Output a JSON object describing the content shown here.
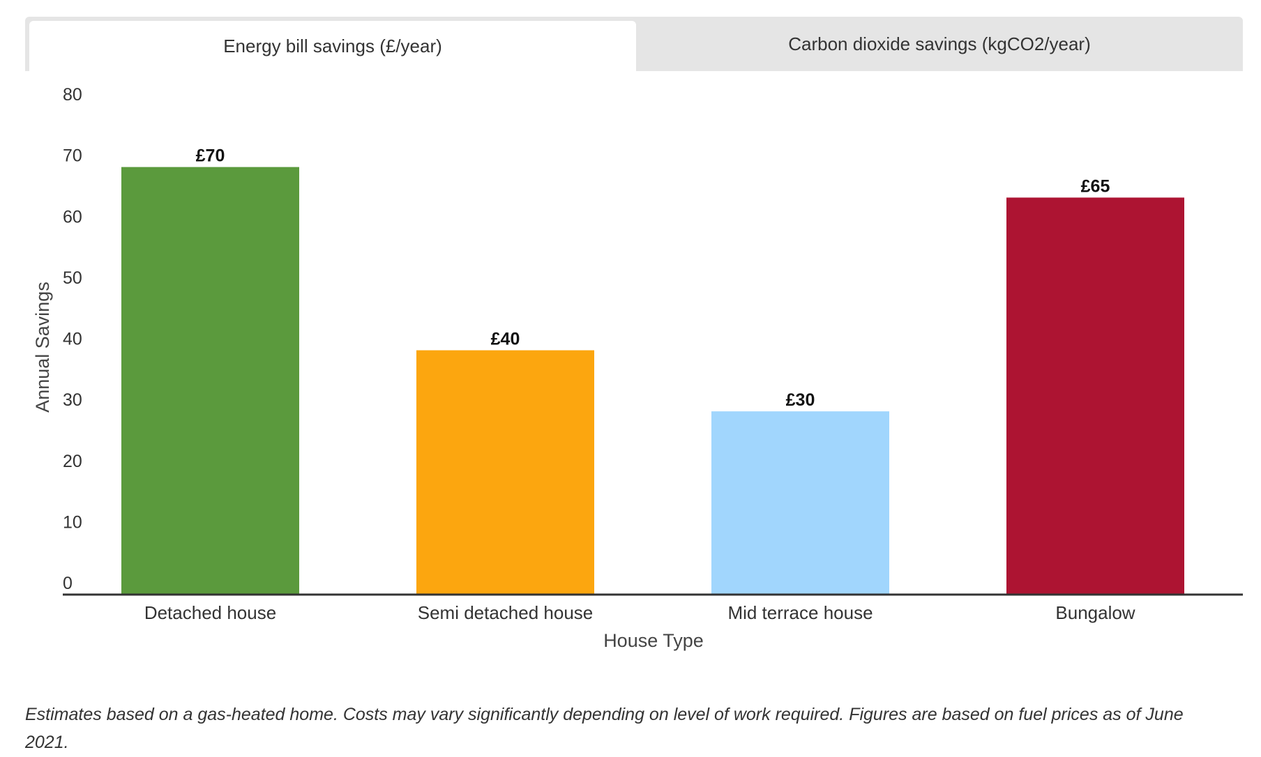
{
  "tabs": [
    {
      "label": "Energy bill savings (£/year)",
      "active": true
    },
    {
      "label": "Carbon dioxide savings (kgCO2/year)",
      "active": false
    }
  ],
  "chart_data": {
    "type": "bar",
    "categories": [
      "Detached house",
      "Semi detached house",
      "Mid terrace house",
      "Bungalow"
    ],
    "values": [
      70,
      40,
      30,
      65
    ],
    "data_labels": [
      "£70",
      "£40",
      "£30",
      "£65"
    ],
    "colors": [
      "#5b9a3d",
      "#fca60f",
      "#a1d6fd",
      "#ad1432"
    ],
    "xlabel": "House Type",
    "ylabel": "Annual Savings",
    "ylim": [
      0,
      80
    ],
    "yticks": [
      0,
      10,
      20,
      30,
      40,
      50,
      60,
      70,
      80
    ],
    "grid": false,
    "legend": "none"
  },
  "footnote": "Estimates based on a gas-heated home. Costs may vary significantly depending on level of work required. Figures are based on fuel prices as of June 2021."
}
